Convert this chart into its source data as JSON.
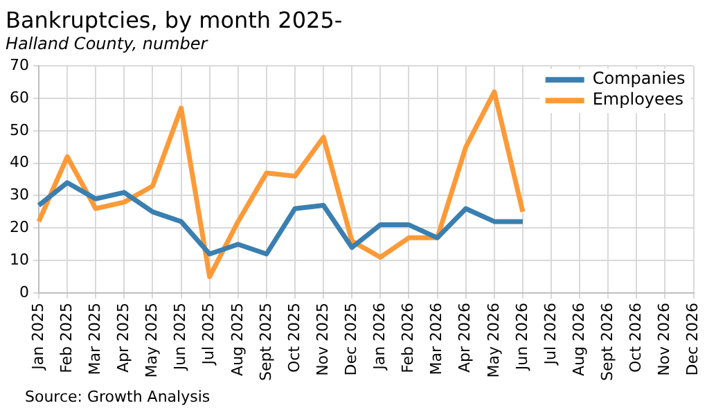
{
  "chart_data": {
    "type": "line",
    "title": "Bankruptcies, by month 2025-",
    "subtitle": "Halland County, number",
    "categories": [
      "Jan 2025",
      "Feb 2025",
      "Mar 2025",
      "Apr 2025",
      "May 2025",
      "Jun 2025",
      "Jul 2025",
      "Aug 2025",
      "Sept 2025",
      "Oct 2025",
      "Nov 2025",
      "Dec 2025",
      "Jan 2026",
      "Feb 2026",
      "Mar 2026",
      "Apr 2026",
      "May 2026",
      "Jun 2026",
      "Jul 2026",
      "Aug 2026",
      "Sept 2026",
      "Oct 2026",
      "Nov 2026",
      "Dec 2026"
    ],
    "series": [
      {
        "name": "Companies",
        "color": "#3a7fb0",
        "values": [
          27,
          34,
          29,
          31,
          25,
          22,
          12,
          15,
          12,
          26,
          27,
          14,
          21,
          21,
          17,
          26,
          22,
          22,
          null,
          null,
          null,
          null,
          null,
          null
        ]
      },
      {
        "name": "Employees",
        "color": "#fd9a38",
        "values": [
          22,
          42,
          26,
          28,
          33,
          57,
          5,
          22,
          37,
          36,
          48,
          16,
          11,
          17,
          17,
          45,
          62,
          25,
          null,
          null,
          null,
          null,
          null,
          null
        ]
      }
    ],
    "ylim": [
      0,
      70
    ],
    "yticks": [
      0,
      10,
      20,
      30,
      40,
      50,
      60,
      70
    ],
    "grid": true,
    "legend": "top right",
    "marker": "none",
    "line_style": "solid",
    "annotations": [
      "Source: Growth Analysis"
    ]
  }
}
